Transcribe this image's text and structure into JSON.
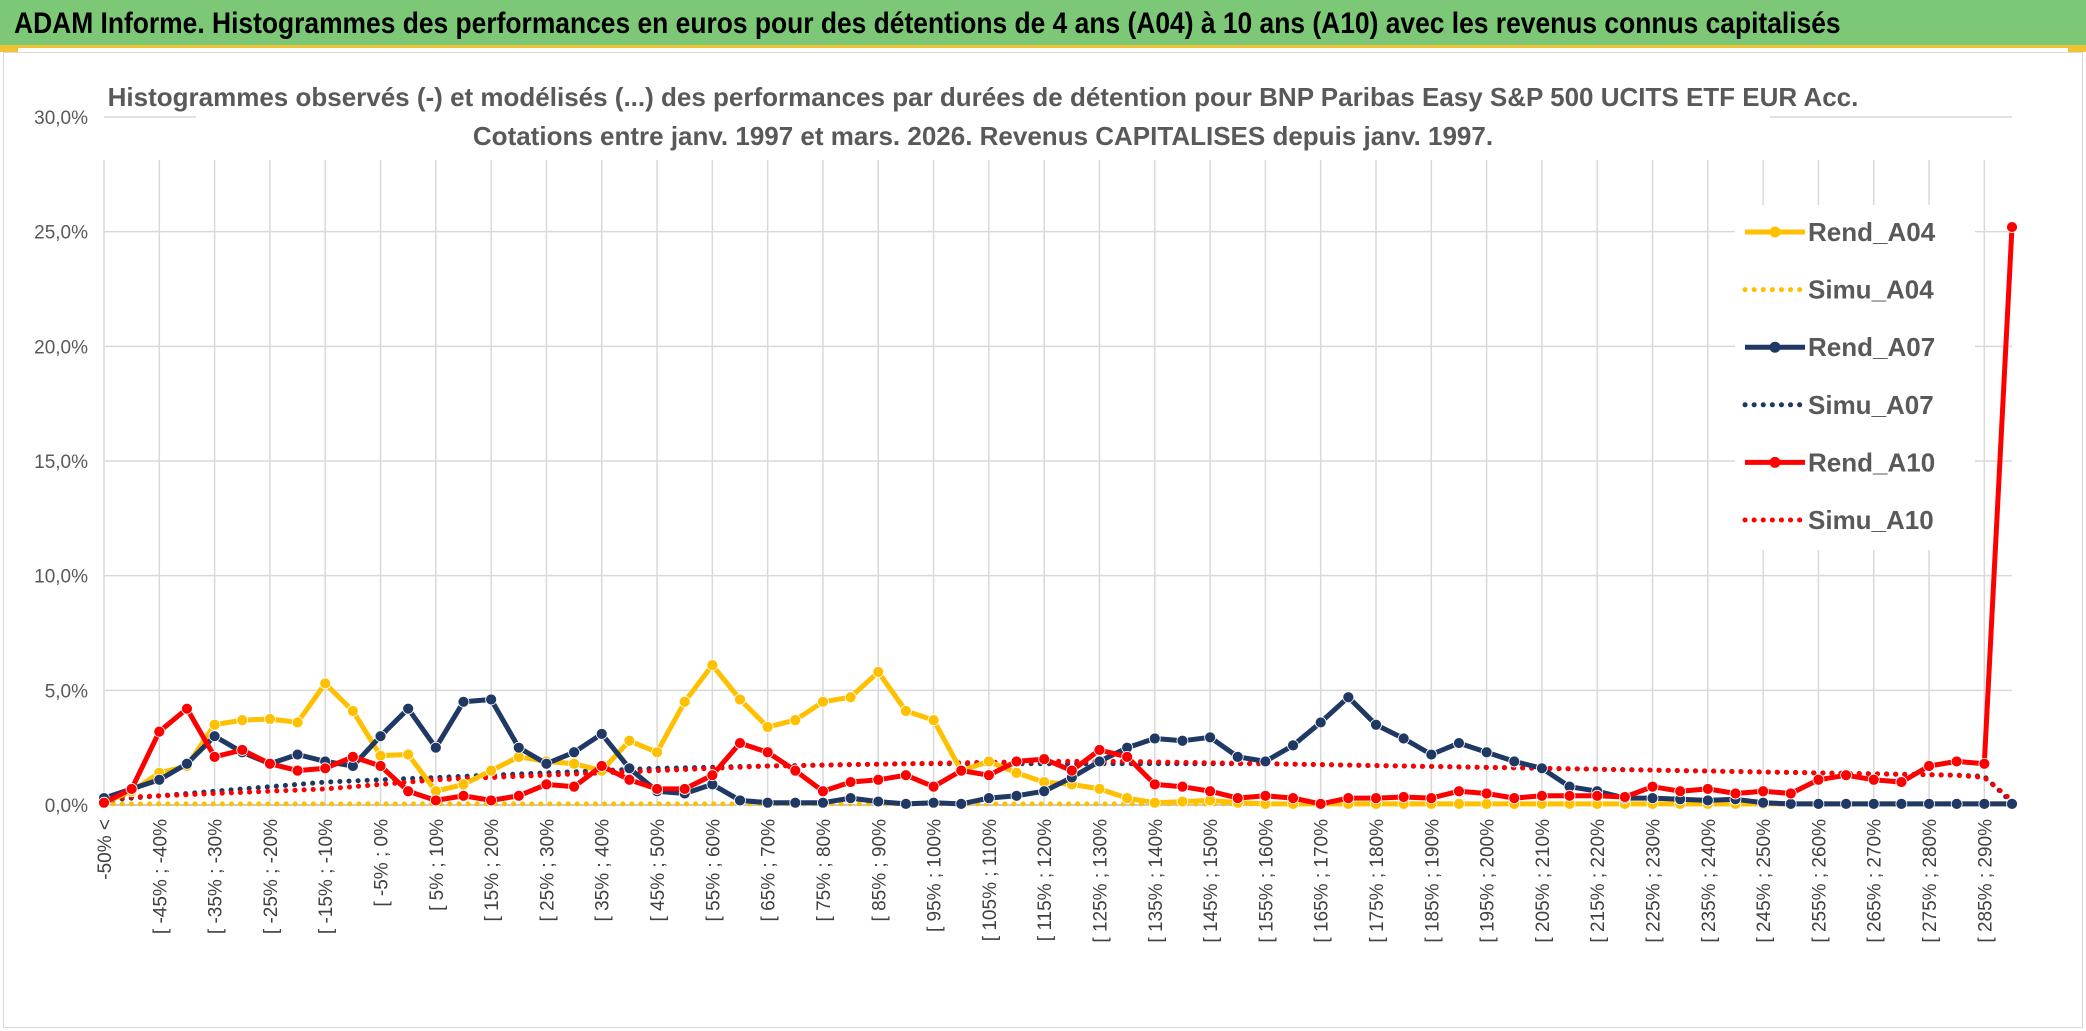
{
  "banner": {
    "title": "ADAM Informe. Histogrammes des performances en euros pour des détentions de 4 ans (A04) à 10 ans (A10) avec les revenus connus capitalisés"
  },
  "chart_data": {
    "type": "line",
    "title_lines": [
      "Histogrammes observés (-) et modélisés (...) des performances par durées de détention pour BNP Paribas Easy S&P 500 UCITS ETF EUR Acc.",
      "Cotations entre janv. 1997 et mars. 2026. Revenus CAPITALISES depuis janv. 1997."
    ],
    "xlabel": "",
    "ylabel": "",
    "ylim": [
      0,
      30
    ],
    "yticks": [
      "0,0%",
      "5,0%",
      "10,0%",
      "15,0%",
      "20,0%",
      "25,0%",
      "30,0%"
    ],
    "grid": true,
    "legend_position": "right",
    "x_tick_labels": [
      "-50% <",
      "[ -45% ; -40%",
      "[ -35% ; -30%",
      "[ -25% ; -20%",
      "[ -15% ; -10%",
      "[ -5% ; 0%",
      "[ 5% ; 10%",
      "[ 15% ; 20%",
      "[ 25% ; 30%",
      "[ 35% ; 40%",
      "[ 45% ; 50%",
      "[ 55% ; 60%",
      "[ 65% ; 70%",
      "[ 75% ; 80%",
      "[ 85% ; 90%",
      "[ 95% ; 100%",
      "[ 105% ; 110%",
      "[ 115% ; 120%",
      "[ 125% ; 130%",
      "[ 135% ; 140%",
      "[ 145% ; 150%",
      "[ 155% ; 160%",
      "[ 165% ; 170%",
      "[ 175% ; 180%",
      "[ 185% ; 190%",
      "[ 195% ; 200%",
      "[ 205% ; 210%",
      "[ 215% ; 220%",
      "[ 225% ; 230%",
      "[ 235% ; 240%",
      "[ 245% ; 250%",
      "[ 255% ; 260%",
      "[ 265% ; 270%",
      "[ 275% ; 280%",
      "[ 285% ; 290%"
    ],
    "series": [
      {
        "name": "Rend_A04",
        "color": "#ffc000",
        "style": "solid",
        "values": [
          0.1,
          0.6,
          1.4,
          1.7,
          3.5,
          3.7,
          3.75,
          3.6,
          5.3,
          4.1,
          2.15,
          2.2,
          0.6,
          0.9,
          1.5,
          2.1,
          1.9,
          1.8,
          1.5,
          2.8,
          2.3,
          4.5,
          6.1,
          4.6,
          3.4,
          3.7,
          4.5,
          4.7,
          5.8,
          4.1,
          3.7,
          1.5,
          1.9,
          1.4,
          1.0,
          0.9,
          0.7,
          0.3,
          0.1,
          0.15,
          0.2,
          0.1,
          0.05,
          0.05,
          0.05,
          0.05,
          0.05,
          0.05,
          0.05,
          0.05,
          0.05,
          0.05,
          0.05,
          0.05,
          0.05,
          0.05,
          0.05,
          0.05,
          0.05,
          0.05,
          0.05,
          0.05,
          0.05,
          0.05,
          0.05,
          0.05,
          0.05,
          0.05,
          0.05,
          0.05
        ]
      },
      {
        "name": "Simu_A04",
        "color": "#ffc000",
        "style": "dotted",
        "values": [
          0.05,
          0.05,
          0.05,
          0.05,
          0.05,
          0.05,
          0.05,
          0.05,
          0.05,
          0.05,
          0.05,
          0.05,
          0.05,
          0.05,
          0.05,
          0.05,
          0.05,
          0.05,
          0.05,
          0.05,
          0.05,
          0.05,
          0.05,
          0.05,
          0.05,
          0.05,
          0.05,
          0.05,
          0.05,
          0.05,
          0.05,
          0.05,
          0.05,
          0.05,
          0.05,
          0.05,
          0.05,
          0.05,
          0.05,
          0.05,
          0.05,
          0.05,
          0.05,
          0.05,
          0.05,
          0.05,
          0.05,
          0.05,
          0.05,
          0.05,
          0.05,
          0.05,
          0.05,
          0.05,
          0.05,
          0.05,
          0.05,
          0.05,
          0.05,
          0.05,
          0.05,
          0.05,
          0.05,
          0.05,
          0.05,
          0.05,
          0.05,
          0.05,
          0.05,
          0.05
        ]
      },
      {
        "name": "Rend_A07",
        "color": "#1f3864",
        "style": "solid",
        "values": [
          0.3,
          0.7,
          1.1,
          1.8,
          3.0,
          2.3,
          1.8,
          2.2,
          1.9,
          1.7,
          3.0,
          4.2,
          2.5,
          4.5,
          4.6,
          2.5,
          1.8,
          2.3,
          3.1,
          1.6,
          0.6,
          0.5,
          0.9,
          0.2,
          0.1,
          0.1,
          0.1,
          0.3,
          0.15,
          0.05,
          0.1,
          0.05,
          0.3,
          0.4,
          0.6,
          1.2,
          1.9,
          2.5,
          2.9,
          2.8,
          2.95,
          2.1,
          1.9,
          2.6,
          3.6,
          4.7,
          3.5,
          2.9,
          2.2,
          2.7,
          2.3,
          1.9,
          1.6,
          0.8,
          0.6,
          0.3,
          0.3,
          0.25,
          0.2,
          0.25,
          0.1,
          0.05,
          0.05,
          0.05,
          0.05,
          0.05,
          0.05,
          0.05,
          0.05,
          0.05
        ]
      },
      {
        "name": "Simu_A07",
        "color": "#1f3864",
        "style": "dotted",
        "values": [
          0.2,
          0.3,
          0.4,
          0.5,
          0.6,
          0.7,
          0.8,
          0.9,
          1.0,
          1.05,
          1.1,
          1.15,
          1.2,
          1.25,
          1.3,
          1.35,
          1.4,
          1.45,
          1.5,
          1.55,
          1.6,
          1.62,
          1.65,
          1.68,
          1.7,
          1.72,
          1.74,
          1.76,
          1.78,
          1.8,
          1.8,
          1.8,
          1.8,
          1.8,
          1.8,
          1.8,
          1.8,
          1.8,
          1.8,
          1.8,
          1.8,
          1.8,
          1.8,
          1.78,
          1.76,
          1.74,
          1.72,
          1.7,
          1.68,
          1.66,
          1.64,
          1.62,
          1.6,
          1.58,
          1.56,
          1.54,
          1.52,
          1.5,
          1.48,
          1.46,
          1.44,
          1.42,
          1.4,
          1.38,
          1.36,
          1.34,
          1.32,
          1.3,
          1.25,
          0.1
        ]
      },
      {
        "name": "Rend_A10",
        "color": "#ff0000",
        "style": "solid",
        "values": [
          0.1,
          0.7,
          3.2,
          4.2,
          2.1,
          2.4,
          1.8,
          1.5,
          1.6,
          2.1,
          1.7,
          0.6,
          0.2,
          0.4,
          0.2,
          0.4,
          0.9,
          0.8,
          1.7,
          1.1,
          0.7,
          0.7,
          1.3,
          2.7,
          2.3,
          1.5,
          0.6,
          1.0,
          1.1,
          1.3,
          0.8,
          1.5,
          1.3,
          1.9,
          2.0,
          1.5,
          2.4,
          2.1,
          0.9,
          0.8,
          0.6,
          0.3,
          0.4,
          0.3,
          0.05,
          0.3,
          0.3,
          0.35,
          0.3,
          0.6,
          0.5,
          0.3,
          0.4,
          0.4,
          0.4,
          0.35,
          0.8,
          0.6,
          0.7,
          0.5,
          0.6,
          0.5,
          1.1,
          1.3,
          1.1,
          1.0,
          1.7,
          1.9,
          1.8,
          25.2
        ]
      },
      {
        "name": "Simu_A10",
        "color": "#ff0000",
        "style": "dotted",
        "values": [
          0.3,
          0.35,
          0.4,
          0.45,
          0.5,
          0.55,
          0.6,
          0.65,
          0.7,
          0.8,
          0.9,
          1.0,
          1.1,
          1.15,
          1.2,
          1.25,
          1.3,
          1.35,
          1.4,
          1.45,
          1.5,
          1.55,
          1.6,
          1.65,
          1.7,
          1.72,
          1.74,
          1.76,
          1.78,
          1.8,
          1.82,
          1.84,
          1.86,
          1.88,
          1.9,
          1.9,
          1.9,
          1.9,
          1.88,
          1.86,
          1.84,
          1.82,
          1.8,
          1.78,
          1.76,
          1.74,
          1.72,
          1.7,
          1.68,
          1.66,
          1.64,
          1.62,
          1.6,
          1.58,
          1.56,
          1.54,
          1.52,
          1.5,
          1.48,
          1.46,
          1.44,
          1.42,
          1.4,
          1.38,
          1.36,
          1.34,
          1.32,
          1.3,
          1.2,
          0.2
        ]
      }
    ]
  }
}
